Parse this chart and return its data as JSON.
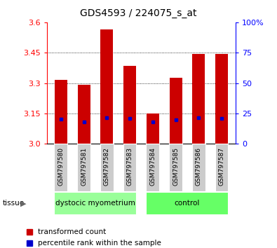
{
  "title": "GDS4593 / 224075_s_at",
  "samples": [
    "GSM797580",
    "GSM797581",
    "GSM797582",
    "GSM797583",
    "GSM797584",
    "GSM797585",
    "GSM797586",
    "GSM797587"
  ],
  "red_values": [
    3.315,
    3.29,
    3.565,
    3.385,
    3.15,
    3.325,
    3.445,
    3.445
  ],
  "blue_values": [
    3.122,
    3.108,
    3.13,
    3.125,
    3.108,
    3.12,
    3.128,
    3.125
  ],
  "y_min": 3.0,
  "y_max": 3.6,
  "y_ticks_left": [
    3.0,
    3.15,
    3.3,
    3.45,
    3.6
  ],
  "y_ticks_right": [
    0,
    25,
    50,
    75,
    100
  ],
  "bar_color": "#CC0000",
  "blue_color": "#0000CC",
  "group1_label": "dystocic myometrium",
  "group2_label": "control",
  "group1_indices": [
    0,
    1,
    2,
    3
  ],
  "group2_indices": [
    4,
    5,
    6,
    7
  ],
  "group1_color": "#99FF99",
  "group2_color": "#66FF66",
  "legend1": "transformed count",
  "legend2": "percentile rank within the sample",
  "tissue_label": "tissue",
  "bar_width": 0.55,
  "title_fontsize": 10,
  "tick_fontsize": 8,
  "label_fontsize": 8
}
